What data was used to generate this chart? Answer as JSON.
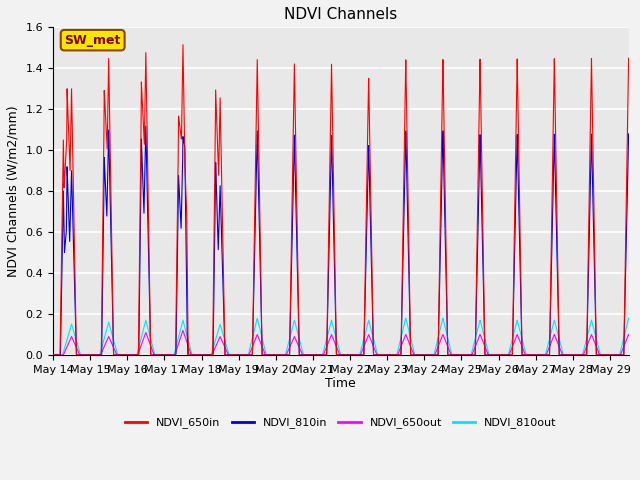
{
  "title": "NDVI Channels",
  "ylabel": "NDVI Channels (W/m2/mm)",
  "xlabel": "Time",
  "ylim": [
    0.0,
    1.6
  ],
  "colors": {
    "NDVI_650in": "#ff0000",
    "NDVI_810in": "#0000dd",
    "NDVI_650out": "#ff00ff",
    "NDVI_810out": "#00e5ff"
  },
  "legend_labels": [
    "NDVI_650in",
    "NDVI_810in",
    "NDVI_650out",
    "NDVI_810out"
  ],
  "x_tick_labels": [
    "May 14",
    "May 15",
    "May 16",
    "May 17",
    "May 18",
    "May 19",
    "May 20",
    "May 21",
    "May 22",
    "May 23",
    "May 24",
    "May 25",
    "May 26",
    "May 27",
    "May 28",
    "May 29"
  ],
  "annotation_text": "SW_met",
  "annotation_bg": "#f5e600",
  "annotation_border": "#8b4500",
  "background_color": "#e8e8e8",
  "grid_color": "#ffffff",
  "fig_bg": "#f2f2f2"
}
